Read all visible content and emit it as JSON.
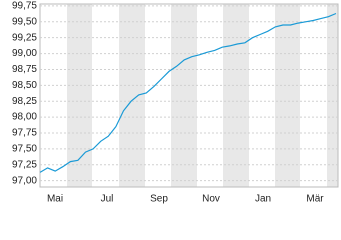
{
  "chart_data": {
    "type": "line",
    "xticks": [
      "Mai",
      "Jul",
      "Sep",
      "Nov",
      "Jan",
      "Mär"
    ],
    "values": [
      97.13,
      97.2,
      97.15,
      97.22,
      97.3,
      97.32,
      97.45,
      97.5,
      97.62,
      97.7,
      97.85,
      98.1,
      98.25,
      98.35,
      98.38,
      98.48,
      98.6,
      98.72,
      98.8,
      98.9,
      98.95,
      98.98,
      99.02,
      99.05,
      99.1,
      99.12,
      99.15,
      99.17,
      99.25,
      99.3,
      99.35,
      99.42,
      99.45,
      99.45,
      99.48,
      99.5,
      99.52,
      99.55,
      99.58,
      99.63
    ],
    "color": "#1a9ad6",
    "ylim": [
      96.9,
      99.78
    ],
    "yticks": [
      {
        "value": 97.0,
        "label": "97,00"
      },
      {
        "value": 97.25,
        "label": "97,25"
      },
      {
        "value": 97.5,
        "label": "97,50"
      },
      {
        "value": 97.75,
        "label": "97,75"
      },
      {
        "value": 98.0,
        "label": "98,00"
      },
      {
        "value": 98.25,
        "label": "98,25"
      },
      {
        "value": 98.5,
        "label": "98,50"
      },
      {
        "value": 98.75,
        "label": "98,75"
      },
      {
        "value": 99.0,
        "label": "99,00"
      },
      {
        "value": 99.25,
        "label": "99,25"
      },
      {
        "value": 99.5,
        "label": "99,50"
      },
      {
        "value": 99.75,
        "label": "99,75"
      }
    ],
    "grid": true
  }
}
